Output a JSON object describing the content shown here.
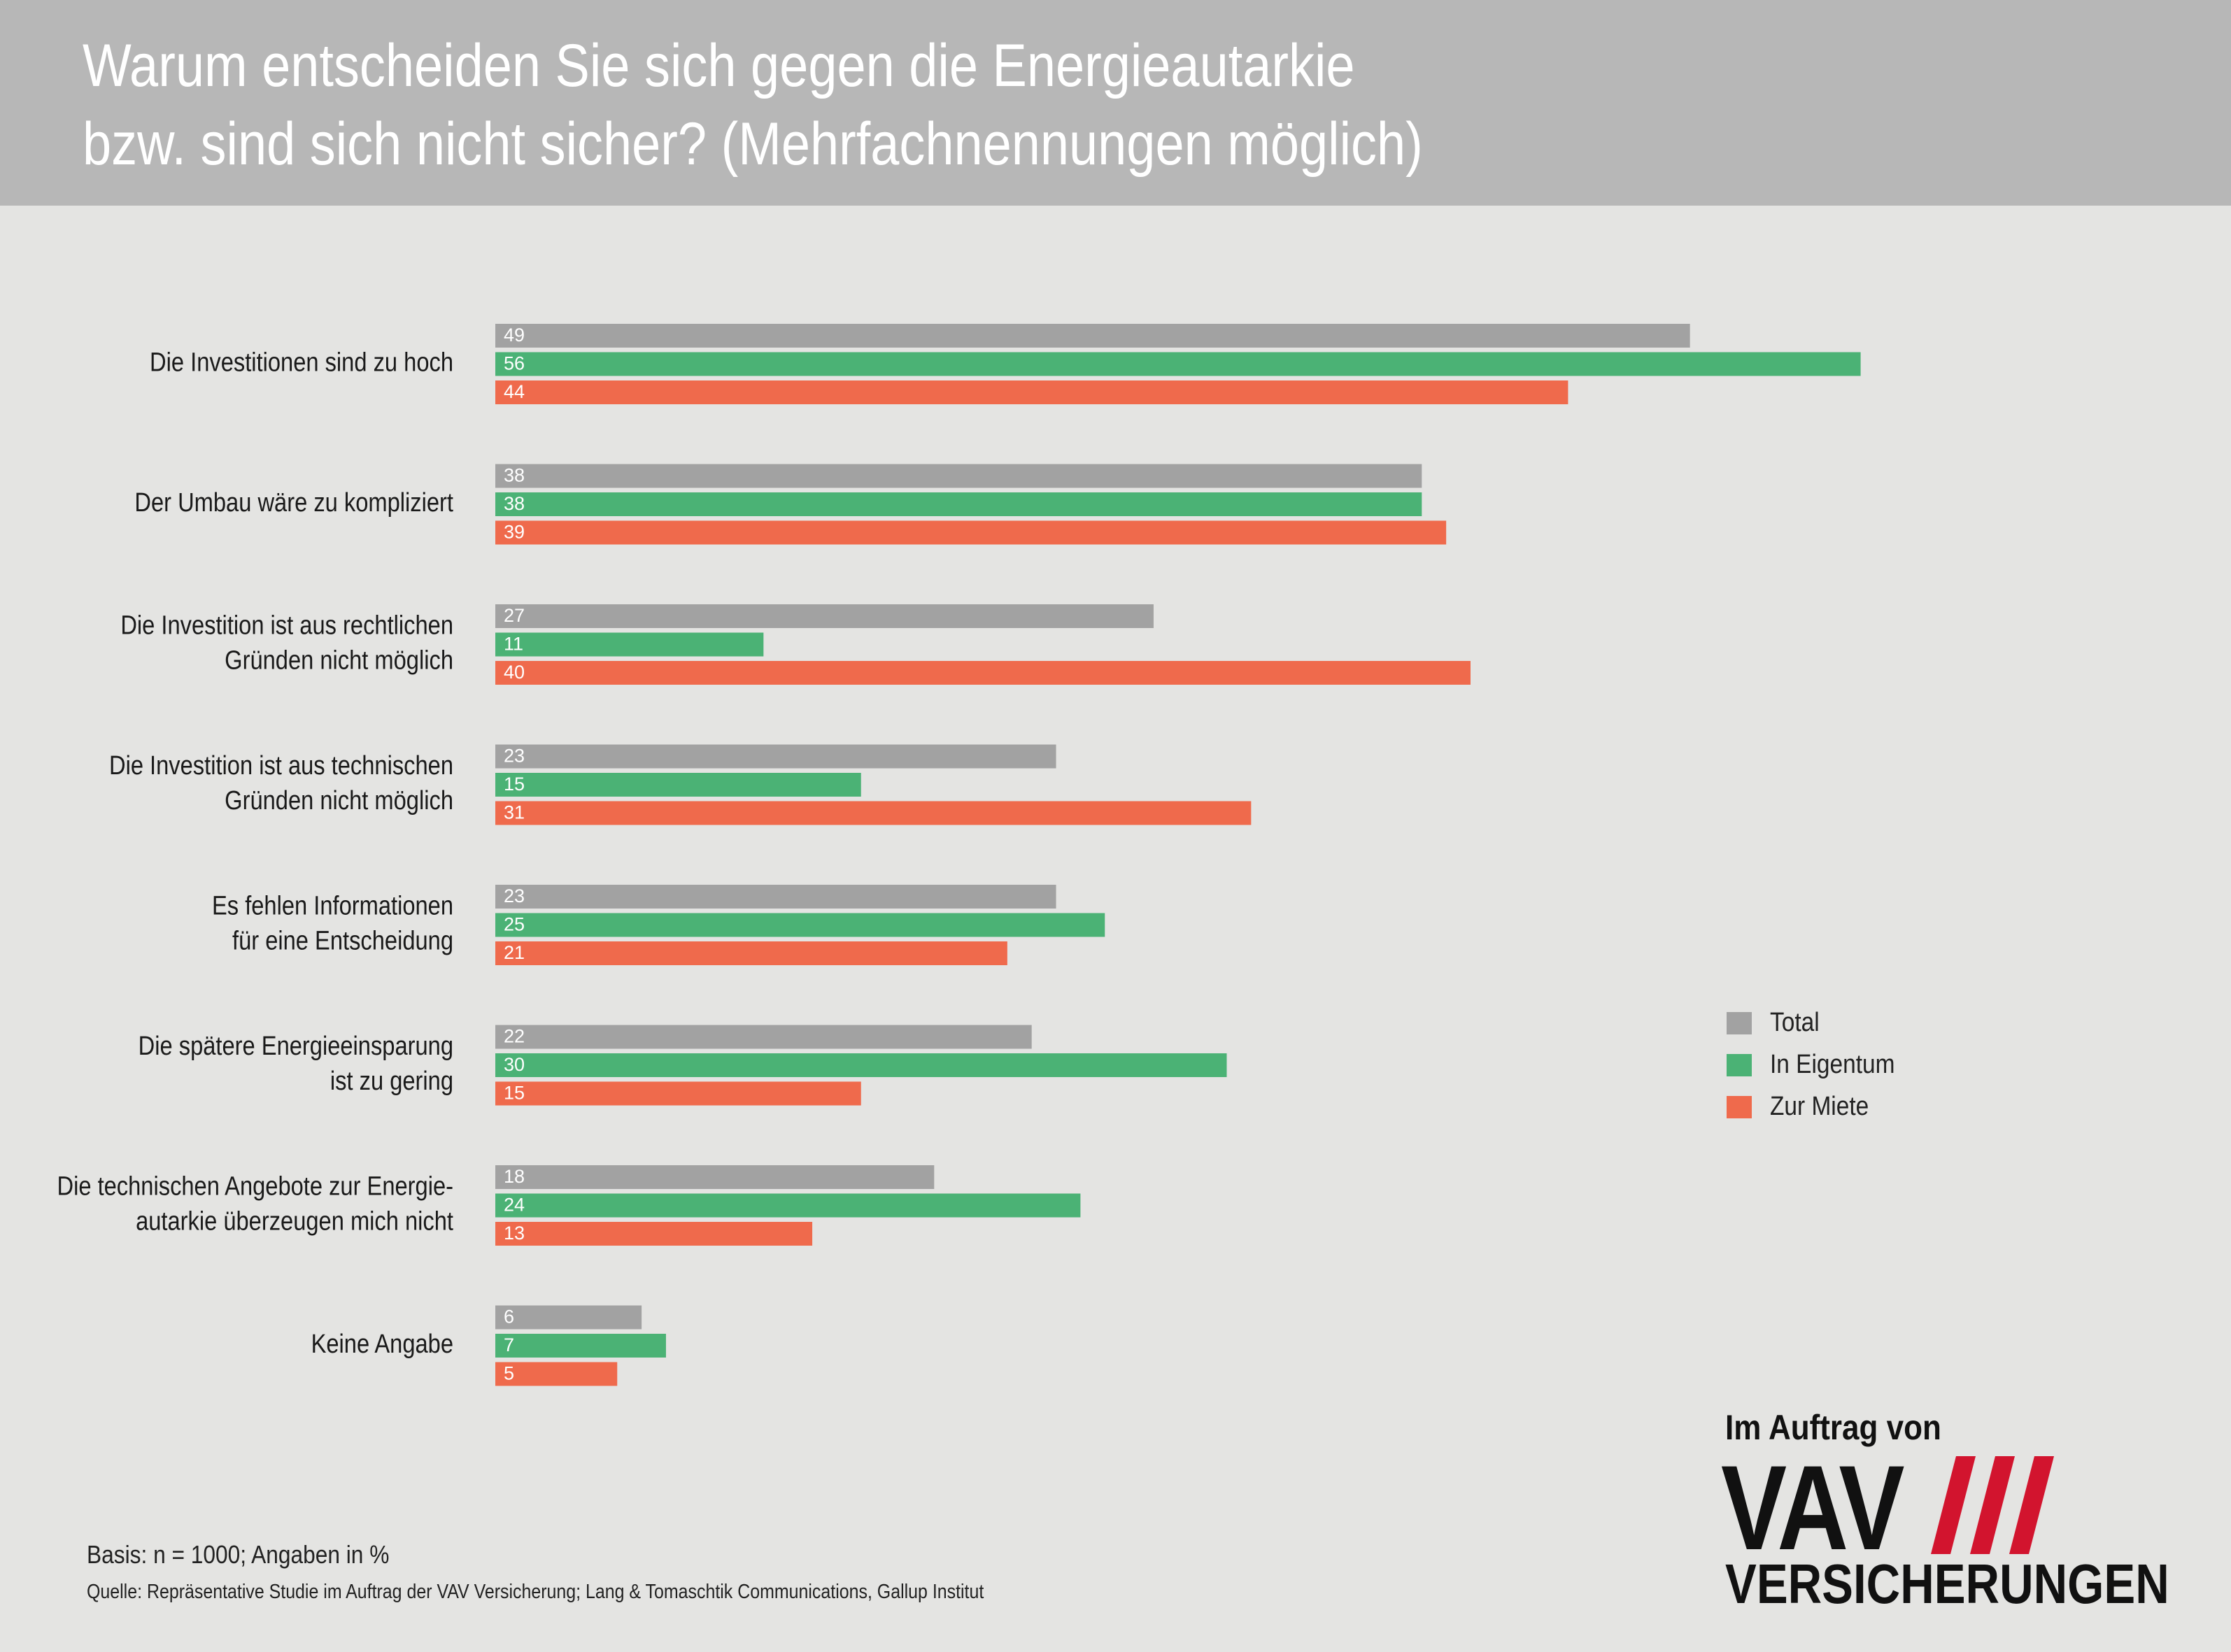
{
  "header": {
    "title_line1": "Warum entscheiden Sie sich gegen die Energieautarkie",
    "title_line2": "bzw. sind sich nicht sicher? (Mehrfachnennungen möglich)"
  },
  "colors": {
    "total": "#a2a2a2",
    "eigentum": "#4bb275",
    "miete": "#ef6a4c",
    "header_bg": "#b7b7b7",
    "page_bg": "#e4e4e2",
    "logo_accent": "#d2142e"
  },
  "chart_data": {
    "type": "bar",
    "orientation": "horizontal",
    "title": "Warum entscheiden Sie sich gegen die Energieautarkie bzw. sind sich nicht sicher? (Mehrfachnennungen möglich)",
    "categories": [
      [
        "Die Investitionen sind zu hoch"
      ],
      [
        "Der Umbau wäre zu kompliziert"
      ],
      [
        "Die Investition ist aus rechtlichen",
        "Gründen nicht möglich"
      ],
      [
        "Die Investition ist aus technischen",
        "Gründen nicht möglich"
      ],
      [
        "Es fehlen Informationen",
        "für eine Entscheidung"
      ],
      [
        "Die spätere Energieeinsparung",
        "ist zu gering"
      ],
      [
        "Die technischen Angebote zur Energie-",
        "autarkie überzeugen mich nicht"
      ],
      [
        "Keine Angabe"
      ]
    ],
    "series": [
      {
        "name": "Total",
        "color": "#a2a2a2",
        "values": [
          49,
          38,
          27,
          23,
          23,
          22,
          18,
          6
        ]
      },
      {
        "name": "In Eigentum",
        "color": "#4bb275",
        "values": [
          56,
          38,
          11,
          15,
          25,
          30,
          24,
          7
        ]
      },
      {
        "name": "Zur Miete",
        "color": "#ef6a4c",
        "values": [
          44,
          39,
          40,
          31,
          21,
          15,
          13,
          5
        ]
      }
    ],
    "xlim": [
      0,
      100
    ],
    "grid": false,
    "data_labels": true,
    "legend_position": "right"
  },
  "legend": {
    "items": [
      {
        "label": "Total",
        "color": "#a2a2a2"
      },
      {
        "label": "In Eigentum",
        "color": "#4bb275"
      },
      {
        "label": "Zur Miete",
        "color": "#ef6a4c"
      }
    ]
  },
  "footer": {
    "basis": "Basis: n = 1000; Angaben in %",
    "source": "Quelle: Repräsentative Studie im Auftrag der VAV Versicherung; Lang & Tomaschtik Communications, Gallup Institut"
  },
  "logo": {
    "top": "Im Auftrag von",
    "main": "VAV",
    "bottom": "VERSICHERUNGEN"
  }
}
